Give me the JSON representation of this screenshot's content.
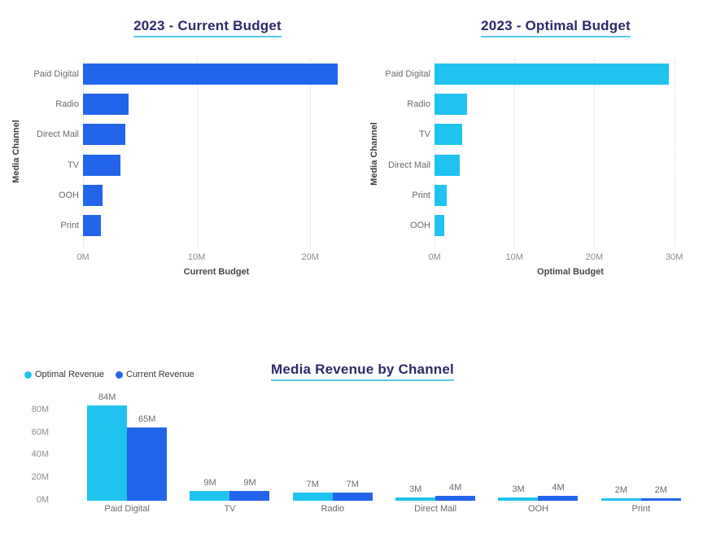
{
  "theme": {
    "background": "#ffffff",
    "current_color": "#2365EA",
    "optimal_color": "#20C3EF",
    "title_color": "#2C2A6B",
    "title_underline_color": "#56C9EF",
    "gridline_color": "#D8D6D4",
    "tick_color": "#8F8D8B",
    "category_color": "#6C6A68"
  },
  "chart_data": [
    {
      "type": "bar",
      "orientation": "horizontal",
      "title": "2023 - Current Budget",
      "xlabel": "Current Budget",
      "ylabel": "Media Channel",
      "categories": [
        "Paid Digital",
        "Radio",
        "Direct Mail",
        "TV",
        "OOH",
        "Print"
      ],
      "values": [
        22.4,
        4.0,
        3.7,
        3.3,
        1.7,
        1.6
      ],
      "unit": "M",
      "bar_color": "#2365EA",
      "x_ticks": [
        0,
        10,
        20
      ],
      "x_tick_labels": [
        "0M",
        "10M",
        "20M"
      ],
      "xlim": [
        0,
        23.5
      ],
      "grid": "vertical-dotted",
      "legend": "none"
    },
    {
      "type": "bar",
      "orientation": "horizontal",
      "title": "2023 - Optimal Budget",
      "xlabel": "Optimal Budget",
      "ylabel": "Media Channel",
      "categories": [
        "Paid Digital",
        "Radio",
        "TV",
        "Direct Mail",
        "Print",
        "OOH"
      ],
      "values": [
        29.3,
        4.1,
        3.5,
        3.2,
        1.5,
        1.2
      ],
      "unit": "M",
      "bar_color": "#20C3EF",
      "x_ticks": [
        0,
        10,
        20,
        30
      ],
      "x_tick_labels": [
        "0M",
        "10M",
        "20M",
        "30M"
      ],
      "xlim": [
        0,
        34
      ],
      "grid": "vertical-dotted",
      "legend": "none"
    },
    {
      "type": "bar",
      "orientation": "vertical",
      "title": "Media Revenue by Channel",
      "categories": [
        "Paid Digital",
        "TV",
        "Radio",
        "Direct Mail",
        "OOH",
        "Print"
      ],
      "series": [
        {
          "name": "Optimal Revenue",
          "color": "#20C3EF",
          "values": [
            84,
            9,
            7,
            3,
            3,
            2
          ],
          "labels": [
            "84M",
            "9M",
            "7M",
            "3M",
            "3M",
            "2M"
          ]
        },
        {
          "name": "Current Revenue",
          "color": "#2365EA",
          "values": [
            65,
            9,
            7,
            4,
            4,
            2
          ],
          "labels": [
            "65M",
            "9M",
            "7M",
            "4M",
            "4M",
            "2M"
          ]
        }
      ],
      "y_ticks": [
        0,
        20,
        40,
        60,
        80
      ],
      "y_tick_labels": [
        "0M",
        "20M",
        "40M",
        "60M",
        "80M"
      ],
      "ylim": [
        0,
        90
      ],
      "grid": "off",
      "legend_position": "top-left"
    }
  ]
}
